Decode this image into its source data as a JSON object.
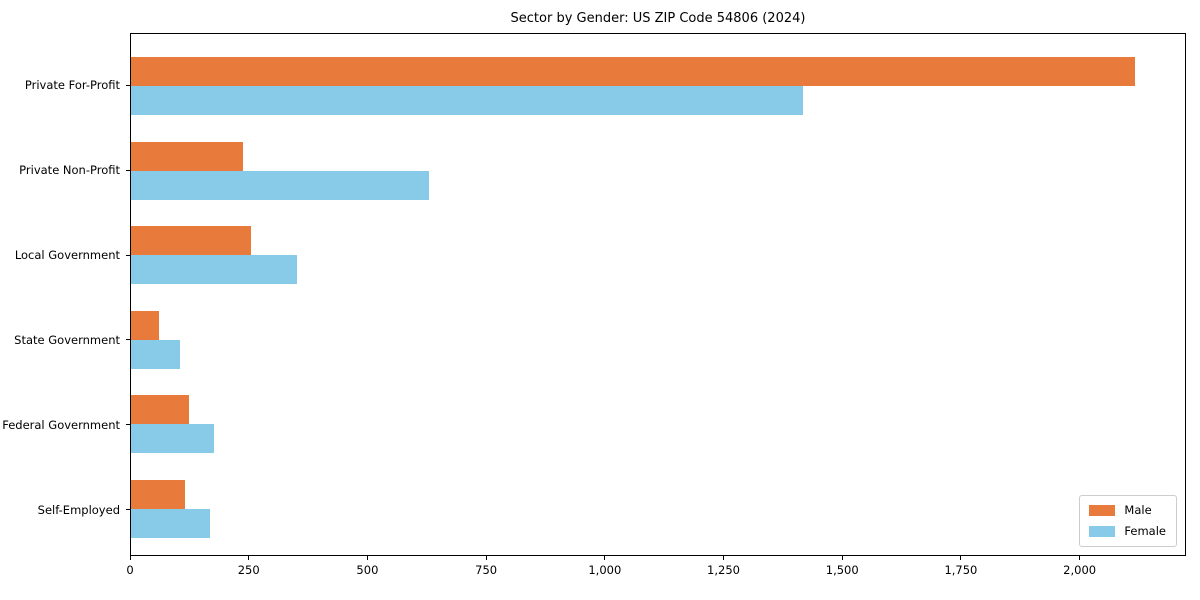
{
  "figure": {
    "background": "#ffffff",
    "plot_border_color": "#000000"
  },
  "chart_data": {
    "type": "bar",
    "orientation": "horizontal",
    "title": "Sector by Gender: US ZIP Code 54806 (2024)",
    "xlabel": "",
    "ylabel": "",
    "grid": false,
    "categories": [
      "Private For-Profit",
      "Private Non-Profit",
      "Local Government",
      "State Government",
      "Federal Government",
      "Self-Employed"
    ],
    "series": [
      {
        "name": "Male",
        "color": "#e87a3b",
        "values": [
          2118,
          236,
          253,
          59,
          122,
          114
        ]
      },
      {
        "name": "Female",
        "color": "#87cbe8",
        "values": [
          1419,
          629,
          350,
          103,
          175,
          167
        ]
      }
    ],
    "xlim": [
      0,
      2224
    ],
    "xticks": [
      0,
      250,
      500,
      750,
      1000,
      1250,
      1500,
      1750,
      2000
    ],
    "xtick_labels": [
      "0",
      "250",
      "500",
      "750",
      "1,000",
      "1,250",
      "1,500",
      "1,750",
      "2,000"
    ],
    "legend": {
      "position": "lower right",
      "entries": [
        "Male",
        "Female"
      ]
    }
  }
}
